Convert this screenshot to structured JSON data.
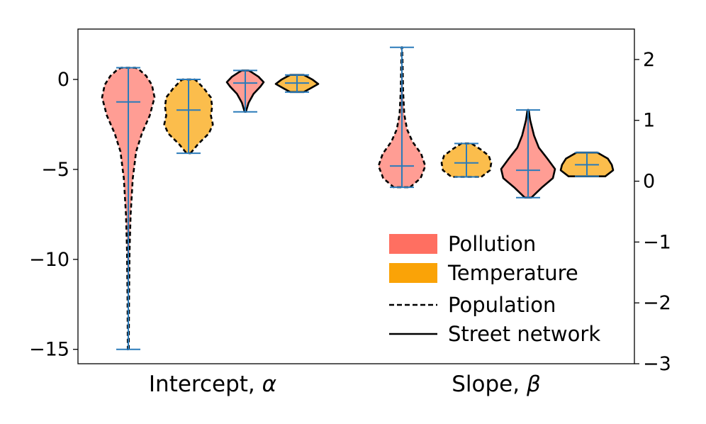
{
  "chart_data": {
    "type": "violin",
    "categories": [
      "Intercept, α",
      "Slope, β"
    ],
    "left_axis": {
      "ylim": [
        -15.8,
        2.8
      ],
      "ticks": [
        0,
        -5,
        -10,
        -15
      ],
      "tick_labels": [
        "0",
        "−5",
        "−10",
        "−15"
      ]
    },
    "right_axis": {
      "ylim": [
        -3,
        2.5
      ],
      "ticks": [
        2,
        1,
        0,
        -1,
        -2,
        -3
      ],
      "tick_labels": [
        "2",
        "1",
        "0",
        "−1",
        "−2",
        "−3"
      ]
    },
    "legend": {
      "placement": "lower-right",
      "entries": [
        {
          "label": "Pollution",
          "kind": "patch",
          "color": "#FF6F61"
        },
        {
          "label": "Temperature",
          "kind": "patch",
          "color": "#FAA307"
        },
        {
          "label": "Population",
          "kind": "line",
          "style": "dashed"
        },
        {
          "label": "Street network",
          "kind": "line",
          "style": "solid"
        }
      ]
    },
    "series": [
      {
        "group": "Intercept, α",
        "axis": "left",
        "variable": "Pollution",
        "model": "Population",
        "min": -15.0,
        "max": 0.65,
        "median": -1.25,
        "profile": [
          [
            -15.0,
            0.02
          ],
          [
            -12.0,
            0.03
          ],
          [
            -9.5,
            0.05
          ],
          [
            -7.5,
            0.09
          ],
          [
            -5.5,
            0.17
          ],
          [
            -4.0,
            0.3
          ],
          [
            -3.0,
            0.52
          ],
          [
            -2.0,
            0.82
          ],
          [
            -1.0,
            1.0
          ],
          [
            -0.3,
            0.9
          ],
          [
            0.2,
            0.68
          ],
          [
            0.5,
            0.45
          ],
          [
            0.65,
            0.28
          ]
        ]
      },
      {
        "group": "Intercept, α",
        "axis": "left",
        "variable": "Temperature",
        "model": "Population",
        "min": -4.1,
        "max": 0.0,
        "median": -1.7,
        "profile": [
          [
            -4.1,
            0.08
          ],
          [
            -3.6,
            0.38
          ],
          [
            -3.0,
            0.82
          ],
          [
            -2.5,
            0.98
          ],
          [
            -2.0,
            0.9
          ],
          [
            -1.5,
            0.95
          ],
          [
            -1.0,
            0.9
          ],
          [
            -0.5,
            0.62
          ],
          [
            -0.1,
            0.34
          ],
          [
            0.0,
            0.25
          ]
        ]
      },
      {
        "group": "Intercept, α",
        "axis": "left",
        "variable": "Pollution",
        "model": "Street network",
        "min": -1.8,
        "max": 0.5,
        "median": -0.2,
        "profile": [
          [
            -1.8,
            0.03
          ],
          [
            -1.3,
            0.18
          ],
          [
            -0.8,
            0.45
          ],
          [
            -0.4,
            0.82
          ],
          [
            -0.15,
            1.0
          ],
          [
            0.15,
            0.72
          ],
          [
            0.4,
            0.35
          ],
          [
            0.5,
            0.18
          ]
        ]
      },
      {
        "group": "Intercept, α",
        "axis": "left",
        "variable": "Temperature",
        "model": "Street network",
        "min": -0.7,
        "max": 0.25,
        "median": -0.2,
        "profile": [
          [
            -0.7,
            0.32
          ],
          [
            -0.45,
            0.7
          ],
          [
            -0.25,
            1.0
          ],
          [
            0.0,
            0.72
          ],
          [
            0.15,
            0.48
          ],
          [
            0.25,
            0.32
          ]
        ]
      },
      {
        "group": "Slope, β",
        "axis": "right",
        "variable": "Pollution",
        "model": "Population",
        "min": -0.1,
        "max": 2.2,
        "median": 0.25,
        "profile": [
          [
            -0.1,
            0.35
          ],
          [
            0.05,
            0.8
          ],
          [
            0.25,
            1.0
          ],
          [
            0.45,
            0.82
          ],
          [
            0.65,
            0.45
          ],
          [
            0.85,
            0.22
          ],
          [
            1.1,
            0.1
          ],
          [
            1.5,
            0.05
          ],
          [
            1.9,
            0.03
          ],
          [
            2.2,
            0.01
          ]
        ]
      },
      {
        "group": "Slope, β",
        "axis": "right",
        "variable": "Temperature",
        "model": "Population",
        "min": 0.07,
        "max": 0.62,
        "median": 0.3,
        "profile": [
          [
            0.07,
            0.6
          ],
          [
            0.18,
            0.95
          ],
          [
            0.3,
            1.0
          ],
          [
            0.42,
            0.9
          ],
          [
            0.52,
            0.58
          ],
          [
            0.62,
            0.2
          ]
        ]
      },
      {
        "group": "Slope, β",
        "axis": "right",
        "variable": "Pollution",
        "model": "Street network",
        "min": -0.27,
        "max": 1.17,
        "median": 0.18,
        "profile": [
          [
            -0.27,
            0.12
          ],
          [
            -0.1,
            0.52
          ],
          [
            0.05,
            0.92
          ],
          [
            0.2,
            1.0
          ],
          [
            0.38,
            0.7
          ],
          [
            0.55,
            0.4
          ],
          [
            0.75,
            0.22
          ],
          [
            1.0,
            0.08
          ],
          [
            1.17,
            0.02
          ]
        ]
      },
      {
        "group": "Slope, β",
        "axis": "right",
        "variable": "Temperature",
        "model": "Street network",
        "min": 0.08,
        "max": 0.47,
        "median": 0.27,
        "profile": [
          [
            0.08,
            0.7
          ],
          [
            0.18,
            1.0
          ],
          [
            0.27,
            0.95
          ],
          [
            0.37,
            0.8
          ],
          [
            0.47,
            0.4
          ]
        ]
      }
    ]
  }
}
